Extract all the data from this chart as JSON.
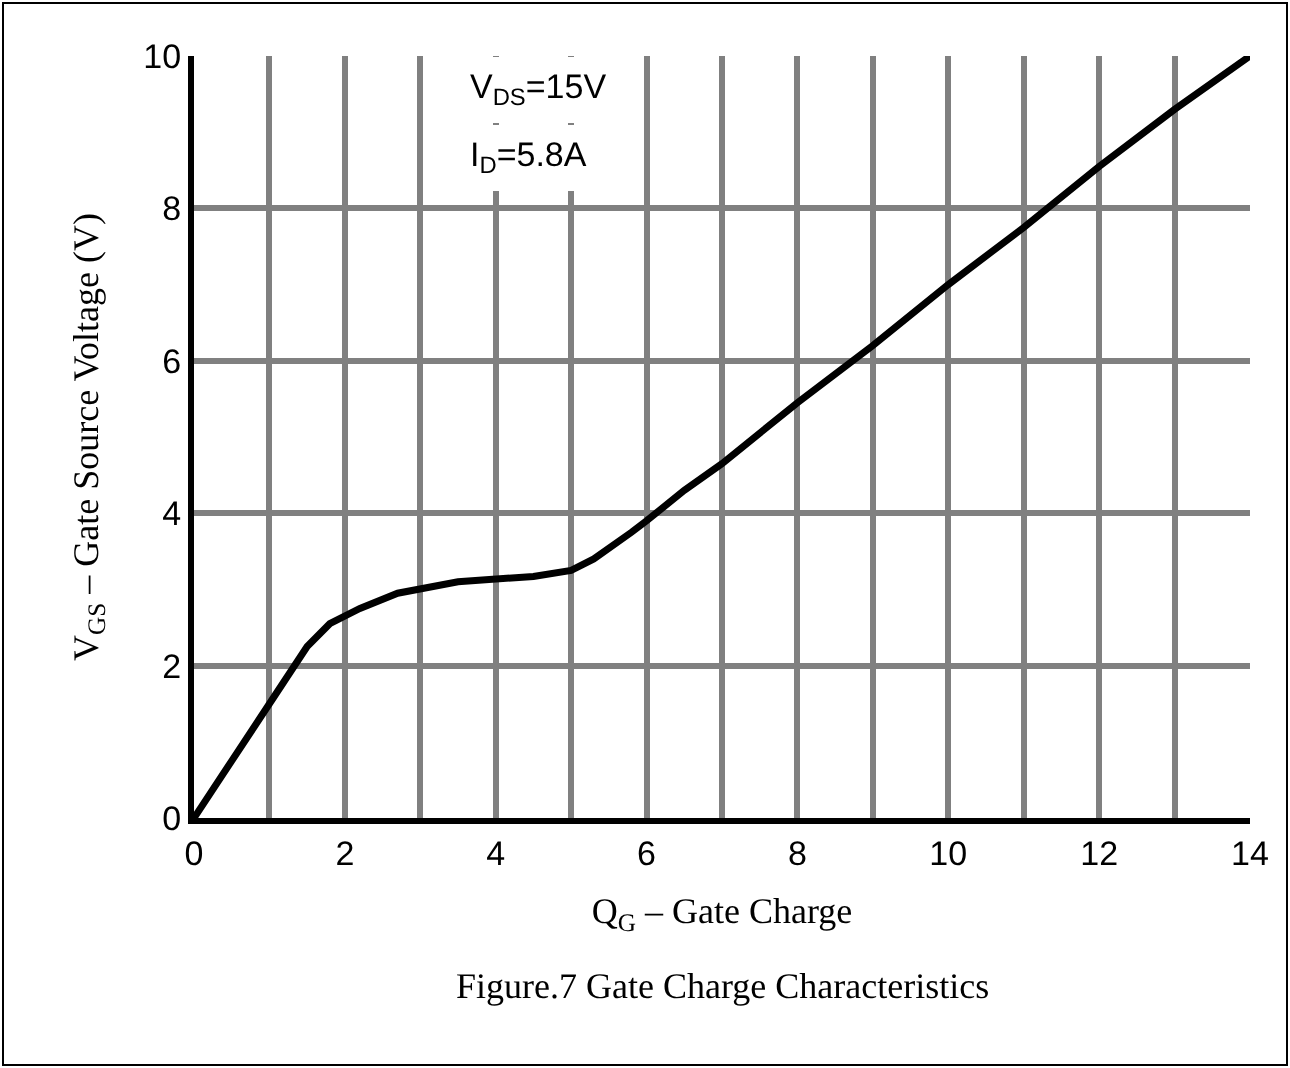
{
  "chart_data": {
    "type": "line",
    "title": "Figure.7 Gate Charge Characteristics",
    "xlabel": "Q$_{G}$ – Gate Charge",
    "ylabel": "V$_{GS}$ – Gate Source Voltage (V)",
    "annotations": [
      "V$_{DS}$=15V",
      "I$_{D}$=5.8A"
    ],
    "series": [
      {
        "color": "#000000",
        "x": [
          0,
          0.5,
          1,
          1.5,
          1.8,
          2.2,
          2.7,
          3.5,
          4.5,
          5,
          5.3,
          5.8,
          6,
          6.5,
          7,
          8,
          9,
          10,
          11,
          12,
          13,
          14
        ],
        "values": [
          0,
          0.75,
          1.5,
          2.25,
          2.55,
          2.75,
          2.95,
          3.1,
          3.17,
          3.25,
          3.4,
          3.75,
          3.9,
          4.3,
          4.65,
          5.45,
          6.2,
          7.0,
          7.75,
          8.55,
          9.3,
          10
        ]
      }
    ],
    "xlim": [
      0,
      14
    ],
    "ylim": [
      0,
      10
    ],
    "xticks": [
      0,
      {
        "value": 1,
        "label": null
      },
      2,
      {
        "value": 3,
        "label": null
      },
      4,
      {
        "value": 5,
        "label": null
      },
      6,
      {
        "value": 7,
        "label": null
      },
      8,
      {
        "value": 9,
        "label": null
      },
      10,
      {
        "value": 11,
        "label": null
      },
      12,
      {
        "value": 13,
        "label": null
      },
      14
    ],
    "yticks": [
      0,
      2,
      4,
      6,
      8,
      10
    ],
    "grid": true,
    "marker": "none",
    "line_style": "solid"
  }
}
